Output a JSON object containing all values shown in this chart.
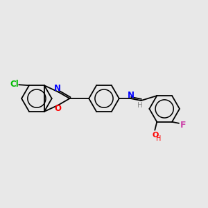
{
  "background_color": "#e8e8e8",
  "bond_color": "#000000",
  "atom_colors": {
    "Cl": "#00bb00",
    "N": "#0000ff",
    "O": "#ff0000",
    "F": "#cc44aa",
    "OH_H": "#ff0000"
  },
  "figsize": [
    3.0,
    3.0
  ],
  "dpi": 100
}
